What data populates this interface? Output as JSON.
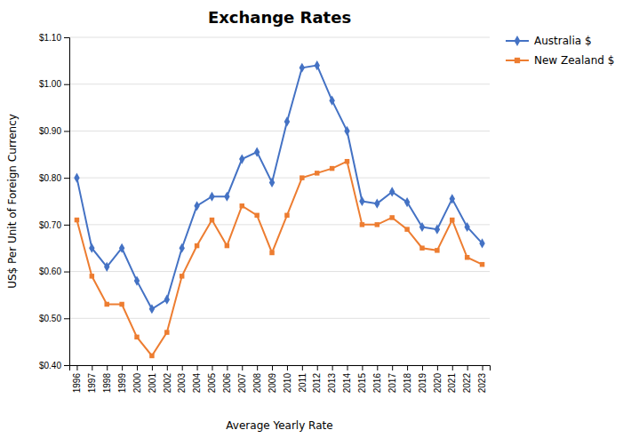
{
  "chart_data": {
    "type": "line",
    "title": "Exchange Rates",
    "xlabel": "Average Yearly Rate",
    "ylabel": "US$ Per Unit of Foreign Currency",
    "x": [
      1996,
      1997,
      1998,
      1999,
      2000,
      2001,
      2002,
      2003,
      2004,
      2005,
      2006,
      2007,
      2008,
      2009,
      2010,
      2011,
      2012,
      2013,
      2014,
      2015,
      2016,
      2017,
      2018,
      2019,
      2020,
      2021,
      2022,
      2023
    ],
    "series": [
      {
        "name": "Australia $",
        "color": "#4472C4",
        "marker": "diamond",
        "values": [
          0.8,
          0.65,
          0.61,
          0.65,
          0.58,
          0.52,
          0.54,
          0.65,
          0.74,
          0.76,
          0.76,
          0.84,
          0.855,
          0.79,
          0.92,
          1.035,
          1.04,
          0.965,
          0.9,
          0.75,
          0.745,
          0.77,
          0.748,
          0.695,
          0.69,
          0.755,
          0.695,
          0.66
        ]
      },
      {
        "name": "New Zealand $",
        "color": "#ED7D31",
        "marker": "square",
        "values": [
          0.71,
          0.59,
          0.53,
          0.53,
          0.46,
          0.42,
          0.47,
          0.59,
          0.655,
          0.71,
          0.655,
          0.74,
          0.72,
          0.64,
          0.72,
          0.8,
          0.81,
          0.82,
          0.835,
          0.7,
          0.7,
          0.715,
          0.69,
          0.65,
          0.645,
          0.71,
          0.63,
          0.615
        ]
      }
    ],
    "xlim": [
      1995.5,
      2023.5
    ],
    "xticks": [
      1996,
      1997,
      1998,
      1999,
      2000,
      2001,
      2002,
      2003,
      2004,
      2005,
      2006,
      2007,
      2008,
      2009,
      2010,
      2011,
      2012,
      2013,
      2014,
      2015,
      2016,
      2017,
      2018,
      2019,
      2020,
      2021,
      2022,
      2023
    ],
    "ylim": [
      0.4,
      1.1
    ],
    "yticks": [
      {
        "value": 0.4,
        "label": "$0.40"
      },
      {
        "value": 0.5,
        "label": "$0.50"
      },
      {
        "value": 0.6,
        "label": "$0.60"
      },
      {
        "value": 0.7,
        "label": "$0.70"
      },
      {
        "value": 0.8,
        "label": "$0.80"
      },
      {
        "value": 0.9,
        "label": "$0.90"
      },
      {
        "value": 1.0,
        "label": "$1.00"
      },
      {
        "value": 1.1,
        "label": "$1.10"
      }
    ],
    "grid": true,
    "legend": "right"
  }
}
